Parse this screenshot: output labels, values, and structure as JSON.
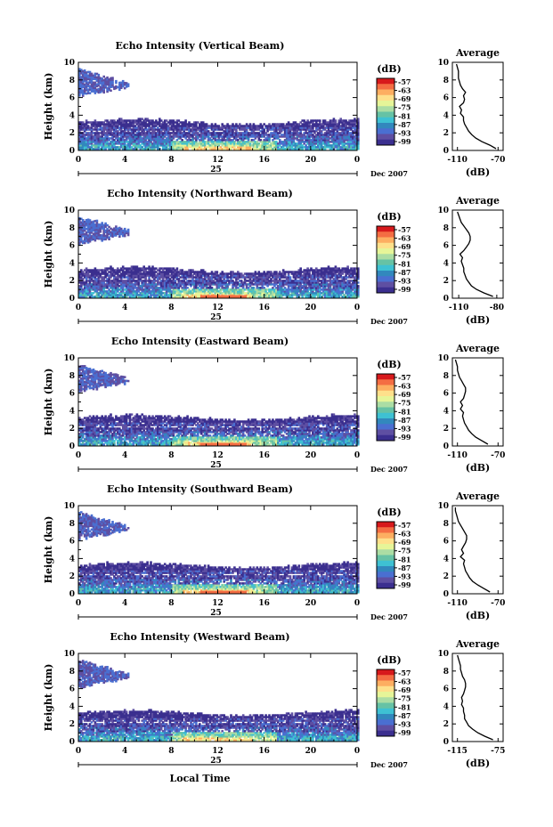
{
  "x_axis_label": "Local Time",
  "colorbar_unit": "(dB)",
  "colorbar_ticks": [
    "-57",
    "-63",
    "-69",
    "-75",
    "-81",
    "-87",
    "-93",
    "-99"
  ],
  "colorbar_colors": [
    "#d7191c",
    "#f46d43",
    "#fdae61",
    "#fee08b",
    "#e6f598",
    "#abdda4",
    "#66c2a5",
    "#3ec1d3",
    "#3288bd",
    "#4a6fd1",
    "#5e4fa2",
    "#3b2f8f"
  ],
  "colors": {
    "background": "#ffffff",
    "axes": "#000000",
    "profile_line": "#000000"
  },
  "chart_data": [
    {
      "type": "heatmap",
      "title": "Echo Intensity (Vertical Beam)",
      "ylabel": "Height (km)",
      "x_ticks": [
        "0",
        "4",
        "8",
        "12",
        "16",
        "20",
        "0"
      ],
      "y_ticks": [
        "0",
        "2",
        "4",
        "6",
        "8",
        "10"
      ],
      "xlim": [
        0,
        24
      ],
      "ylim": [
        0,
        10
      ],
      "date_day": "25",
      "date_month": "Dec 2007",
      "profile": {
        "title": "Average",
        "xlabel": "(dB)",
        "x_ticks": [
          "-110",
          "-70"
        ],
        "y_ticks": [
          "0",
          "2",
          "4",
          "6",
          "8",
          "10"
        ],
        "xlim": [
          -115,
          -65
        ],
        "ylim": [
          0,
          10
        ],
        "height": [
          0.2,
          0.6,
          1.0,
          1.4,
          1.8,
          2.2,
          2.6,
          3.0,
          3.4,
          3.8,
          4.2,
          4.6,
          5.0,
          5.4,
          5.8,
          6.2,
          6.6,
          7.0,
          7.4,
          7.8,
          8.2,
          8.6,
          9.0,
          9.4,
          9.8
        ],
        "value": [
          -72,
          -78,
          -86,
          -92,
          -96,
          -99,
          -101,
          -103,
          -104,
          -104,
          -107,
          -106,
          -108,
          -104,
          -103,
          -104,
          -102,
          -105,
          -107,
          -108,
          -109,
          -109,
          -109,
          -110,
          -111
        ]
      }
    },
    {
      "type": "heatmap",
      "title": "Echo Intensity (Northward Beam)",
      "ylabel": "Height (km)",
      "x_ticks": [
        "0",
        "4",
        "8",
        "12",
        "16",
        "20",
        "0"
      ],
      "y_ticks": [
        "0",
        "2",
        "4",
        "6",
        "8",
        "10"
      ],
      "xlim": [
        0,
        24
      ],
      "ylim": [
        0,
        10
      ],
      "date_day": "25",
      "date_month": "Dec 2007",
      "profile": {
        "title": "Average",
        "xlabel": "(dB)",
        "x_ticks": [
          "-110",
          "-80"
        ],
        "y_ticks": [
          "0",
          "2",
          "4",
          "6",
          "8",
          "10"
        ],
        "xlim": [
          -115,
          -75
        ],
        "ylim": [
          0,
          10
        ],
        "height": [
          0.2,
          0.6,
          1.0,
          1.4,
          1.8,
          2.2,
          2.6,
          3.0,
          3.4,
          3.8,
          4.2,
          4.6,
          5.0,
          5.4,
          5.8,
          6.2,
          6.6,
          7.0,
          7.4,
          7.8,
          8.2,
          8.6,
          9.0,
          9.4,
          9.8
        ],
        "value": [
          -83,
          -90,
          -96,
          -100,
          -102,
          -104,
          -105,
          -106,
          -106,
          -107,
          -108,
          -107,
          -109,
          -106,
          -104,
          -102,
          -101,
          -101,
          -102,
          -104,
          -106,
          -108,
          -109,
          -110,
          -111
        ]
      }
    },
    {
      "type": "heatmap",
      "title": "Echo Intensity (Eastward Beam)",
      "ylabel": "Height (km)",
      "x_ticks": [
        "0",
        "4",
        "8",
        "12",
        "16",
        "20",
        "0"
      ],
      "y_ticks": [
        "0",
        "2",
        "4",
        "6",
        "8",
        "10"
      ],
      "xlim": [
        0,
        24
      ],
      "ylim": [
        0,
        10
      ],
      "date_day": "25",
      "date_month": "Dec 2007",
      "profile": {
        "title": "Average",
        "xlabel": "(dB)",
        "x_ticks": [
          "-110",
          "-70"
        ],
        "y_ticks": [
          "0",
          "2",
          "4",
          "6",
          "8",
          "10"
        ],
        "xlim": [
          -115,
          -65
        ],
        "ylim": [
          0,
          10
        ],
        "height": [
          0.2,
          0.6,
          1.0,
          1.4,
          1.8,
          2.2,
          2.6,
          3.0,
          3.4,
          3.8,
          4.2,
          4.6,
          5.0,
          5.4,
          5.8,
          6.2,
          6.6,
          7.0,
          7.4,
          7.8,
          8.2,
          8.6,
          9.0,
          9.4,
          9.8
        ],
        "value": [
          -80,
          -86,
          -92,
          -96,
          -99,
          -101,
          -103,
          -104,
          -105,
          -104,
          -107,
          -105,
          -107,
          -104,
          -103,
          -102,
          -102,
          -104,
          -106,
          -108,
          -109,
          -110,
          -110,
          -111,
          -112
        ]
      }
    },
    {
      "type": "heatmap",
      "title": "Echo Intensity (Southward Beam)",
      "ylabel": "Height (km)",
      "x_ticks": [
        "0",
        "4",
        "8",
        "12",
        "16",
        "20",
        "0"
      ],
      "y_ticks": [
        "0",
        "2",
        "4",
        "6",
        "8",
        "10"
      ],
      "xlim": [
        0,
        24
      ],
      "ylim": [
        0,
        10
      ],
      "date_day": "25",
      "date_month": "Dec 2007",
      "profile": {
        "title": "Average",
        "xlabel": "(dB)",
        "x_ticks": [
          "-110",
          "-70"
        ],
        "y_ticks": [
          "0",
          "2",
          "4",
          "6",
          "8",
          "10"
        ],
        "xlim": [
          -115,
          -65
        ],
        "ylim": [
          0,
          10
        ],
        "height": [
          0.2,
          0.6,
          1.0,
          1.4,
          1.8,
          2.2,
          2.6,
          3.0,
          3.4,
          3.8,
          4.2,
          4.6,
          5.0,
          5.4,
          5.8,
          6.2,
          6.6,
          7.0,
          7.4,
          7.8,
          8.2,
          8.6,
          9.0,
          9.4,
          9.8
        ],
        "value": [
          -78,
          -84,
          -90,
          -95,
          -98,
          -100,
          -102,
          -103,
          -104,
          -103,
          -107,
          -104,
          -106,
          -104,
          -102,
          -101,
          -101,
          -103,
          -105,
          -107,
          -109,
          -110,
          -111,
          -112,
          -112
        ]
      }
    },
    {
      "type": "heatmap",
      "title": "Echo Intensity (Westward Beam)",
      "ylabel": "Height (km)",
      "x_ticks": [
        "0",
        "4",
        "8",
        "12",
        "16",
        "20",
        "0"
      ],
      "y_ticks": [
        "0",
        "2",
        "4",
        "6",
        "8",
        "10"
      ],
      "xlim": [
        0,
        24
      ],
      "ylim": [
        0,
        10
      ],
      "date_day": "25",
      "date_month": "Dec 2007",
      "profile": {
        "title": "Average",
        "xlabel": "(dB)",
        "x_ticks": [
          "-115",
          "-75"
        ],
        "y_ticks": [
          "0",
          "2",
          "4",
          "6",
          "8",
          "10"
        ],
        "xlim": [
          -120,
          -70
        ],
        "ylim": [
          0,
          10
        ],
        "height": [
          0.2,
          0.6,
          1.0,
          1.4,
          1.8,
          2.2,
          2.6,
          3.0,
          3.4,
          3.8,
          4.2,
          4.6,
          5.0,
          5.4,
          5.8,
          6.2,
          6.6,
          7.0,
          7.4,
          7.8,
          8.2,
          8.6,
          9.0,
          9.4,
          9.8
        ],
        "value": [
          -80,
          -88,
          -95,
          -100,
          -104,
          -106,
          -108,
          -108,
          -109,
          -109,
          -111,
          -110,
          -111,
          -109,
          -108,
          -107,
          -107,
          -108,
          -110,
          -111,
          -112,
          -112,
          -113,
          -114,
          -115
        ]
      }
    }
  ]
}
